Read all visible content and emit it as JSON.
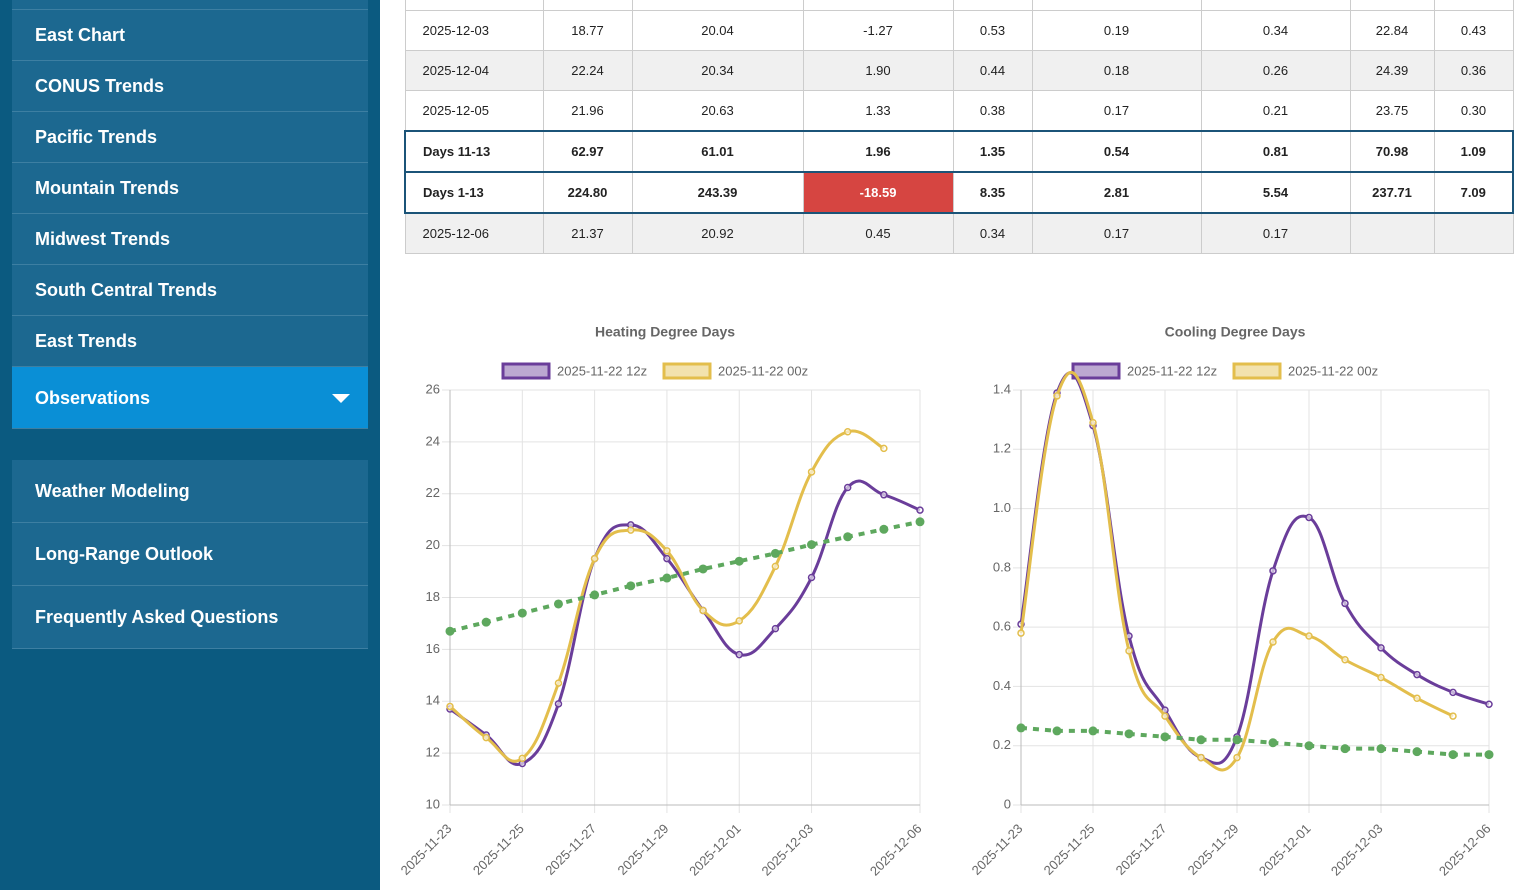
{
  "nav": {
    "group1": [
      "East Chart",
      "CONUS Trends",
      "Pacific Trends",
      "Mountain Trends",
      "Midwest Trends",
      "South Central Trends",
      "East Trends",
      "Observations"
    ],
    "group2": [
      "Weather Modeling",
      "Long-Range Outlook",
      "Frequently Asked Questions"
    ]
  },
  "table": {
    "rows": [
      {
        "cells": [
          "2025-12-03",
          "18.77",
          "20.04",
          "-1.27",
          "0.53",
          "0.19",
          "0.34",
          "22.84",
          "0.43"
        ]
      },
      {
        "cells": [
          "2025-12-04",
          "22.24",
          "20.34",
          "1.90",
          "0.44",
          "0.18",
          "0.26",
          "24.39",
          "0.36"
        ]
      },
      {
        "cells": [
          "2025-12-05",
          "21.96",
          "20.63",
          "1.33",
          "0.38",
          "0.17",
          "0.21",
          "23.75",
          "0.30"
        ]
      },
      {
        "cells": [
          "Days 11-13",
          "62.97",
          "61.01",
          "1.96",
          "1.35",
          "0.54",
          "0.81",
          "70.98",
          "1.09"
        ],
        "total": true
      },
      {
        "cells": [
          "Days 1-13",
          "224.80",
          "243.39",
          "-18.59",
          "8.35",
          "2.81",
          "5.54",
          "237.71",
          "7.09"
        ],
        "total": true
      },
      {
        "cells": [
          "2025-12-06",
          "21.37",
          "20.92",
          "0.45",
          "0.34",
          "0.17",
          "0.17"
        ]
      }
    ]
  },
  "chart_data": [
    {
      "type": "line",
      "title": "Heating Degree Days",
      "categories": [
        "2025-11-23",
        null,
        "2025-11-25",
        null,
        "2025-11-27",
        null,
        "2025-11-29",
        null,
        "2025-12-01",
        null,
        "2025-12-03",
        null,
        null,
        "2025-12-06"
      ],
      "series": [
        {
          "name": "2025-11-22 12z",
          "color": "#6a3d9a",
          "values": [
            13.7,
            12.7,
            11.6,
            13.9,
            19.5,
            20.8,
            19.5,
            17.5,
            15.8,
            16.8,
            18.77,
            22.24,
            21.96,
            21.37
          ]
        },
        {
          "name": "2025-11-22 00z",
          "color": "#e3be4c",
          "values": [
            13.8,
            12.6,
            11.8,
            14.7,
            19.5,
            20.6,
            19.8,
            17.5,
            17.1,
            19.2,
            22.84,
            24.39,
            23.75,
            null
          ]
        },
        {
          "color": "#5ea85e",
          "dashed": true,
          "values": [
            16.7,
            17.05,
            17.4,
            17.75,
            18.1,
            18.45,
            18.75,
            19.1,
            19.4,
            19.7,
            20.04,
            20.34,
            20.63,
            20.92
          ]
        }
      ],
      "ylim": [
        10,
        26
      ],
      "yticks": [
        10,
        12,
        14,
        16,
        18,
        20,
        22,
        24,
        26
      ],
      "grid": true
    },
    {
      "type": "line",
      "title": "Cooling Degree Days",
      "categories": [
        "2025-11-23",
        null,
        "2025-11-25",
        null,
        "2025-11-27",
        null,
        "2025-11-29",
        null,
        "2025-12-01",
        null,
        "2025-12-03",
        null,
        null,
        "2025-12-06"
      ],
      "series": [
        {
          "name": "2025-11-22 12z",
          "color": "#6a3d9a",
          "values": [
            0.61,
            1.39,
            1.28,
            0.57,
            0.32,
            0.16,
            0.23,
            0.79,
            0.97,
            0.68,
            0.53,
            0.44,
            0.38,
            0.34
          ]
        },
        {
          "name": "2025-11-22 00z",
          "color": "#e3be4c",
          "values": [
            0.58,
            1.38,
            1.29,
            0.52,
            0.3,
            0.16,
            0.16,
            0.55,
            0.57,
            0.49,
            0.43,
            0.36,
            0.3,
            null
          ]
        },
        {
          "color": "#5ea85e",
          "dashed": true,
          "values": [
            0.26,
            0.25,
            0.25,
            0.24,
            0.23,
            0.22,
            0.22,
            0.21,
            0.2,
            0.19,
            0.19,
            0.18,
            0.17,
            0.17
          ]
        }
      ],
      "ylim": [
        0,
        1.4
      ],
      "yticks": [
        0,
        {
          "value": 0.2,
          "label": "0.2"
        },
        {
          "value": 0.4,
          "label": "0.4"
        },
        {
          "value": 0.6,
          "label": "0.6"
        },
        {
          "value": 0.8,
          "label": "0.8"
        },
        {
          "value": 1,
          "label": "1.0"
        },
        {
          "value": 1.2,
          "label": "1.2"
        },
        {
          "value": 1.4,
          "label": "1.4"
        }
      ],
      "grid": true
    }
  ]
}
